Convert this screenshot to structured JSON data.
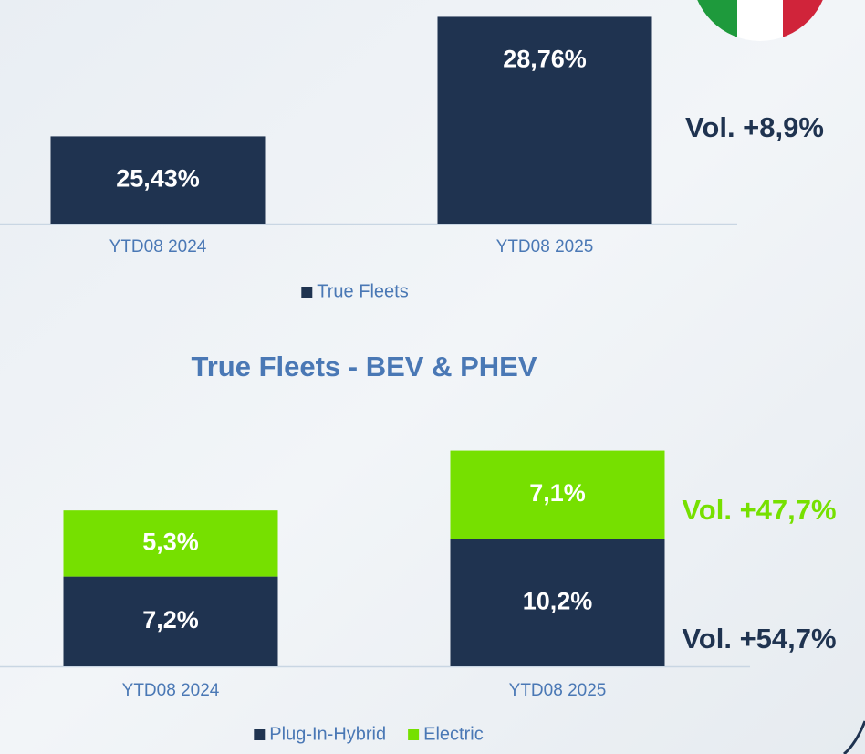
{
  "chart_data": [
    {
      "type": "bar",
      "categories": [
        "YTD08 2024",
        "YTD08 2025"
      ],
      "series": [
        {
          "name": "True Fleets",
          "color": "#1f3350",
          "values": [
            25.43,
            28.76
          ],
          "value_labels": [
            "25,43%",
            "28,76%"
          ]
        }
      ],
      "ylim": [
        23,
        29
      ],
      "annotations": [
        {
          "text": "Vol. +8,9%",
          "color": "#1f3350"
        }
      ]
    },
    {
      "type": "bar",
      "stacked": true,
      "title": "True Fleets - BEV & PHEV",
      "categories": [
        "YTD08 2024",
        "YTD08 2025"
      ],
      "series": [
        {
          "name": "Plug-In-Hybrid",
          "color": "#1f3350",
          "values": [
            7.2,
            10.2
          ],
          "value_labels": [
            "7,2%",
            "10,2%"
          ]
        },
        {
          "name": "Electric",
          "color": "#76e000",
          "values": [
            5.3,
            7.1
          ],
          "value_labels": [
            "5,3%",
            "7,1%"
          ]
        }
      ],
      "ylim": [
        0,
        18
      ],
      "annotations": [
        {
          "text": "Vol. +47,7%",
          "color": "#76e000"
        },
        {
          "text": "Vol. +54,7%",
          "color": "#1f3350"
        }
      ]
    }
  ]
}
